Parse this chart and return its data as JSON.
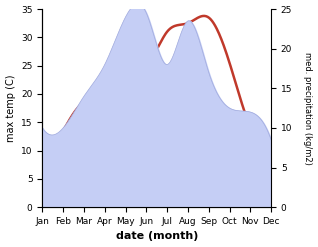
{
  "months": [
    "Jan",
    "Feb",
    "Mar",
    "Apr",
    "May",
    "Jun",
    "Jul",
    "Aug",
    "Sep",
    "Oct",
    "Nov",
    "Dec"
  ],
  "temperature": [
    8.5,
    13.5,
    18.5,
    20.0,
    27.0,
    25.5,
    31.0,
    32.5,
    33.5,
    25.5,
    14.0,
    11.5
  ],
  "precipitation": [
    10.0,
    10.0,
    14.0,
    18.0,
    24.0,
    24.5,
    18.0,
    23.5,
    17.0,
    12.5,
    12.0,
    8.5
  ],
  "temp_color": "#c0392b",
  "precip_fill_color": "#c5cef5",
  "precip_fill_edge": "#a0aadd",
  "ylim_temp": [
    0,
    35
  ],
  "ylim_precip": [
    0,
    25
  ],
  "ylabel_left": "max temp (C)",
  "ylabel_right": "med. precipitation (kg/m2)",
  "xlabel": "date (month)",
  "yticks_left": [
    0,
    5,
    10,
    15,
    20,
    25,
    30,
    35
  ],
  "yticks_right": [
    0,
    5,
    10,
    15,
    20,
    25
  ],
  "temp_linewidth": 1.8,
  "background_color": "#ffffff"
}
